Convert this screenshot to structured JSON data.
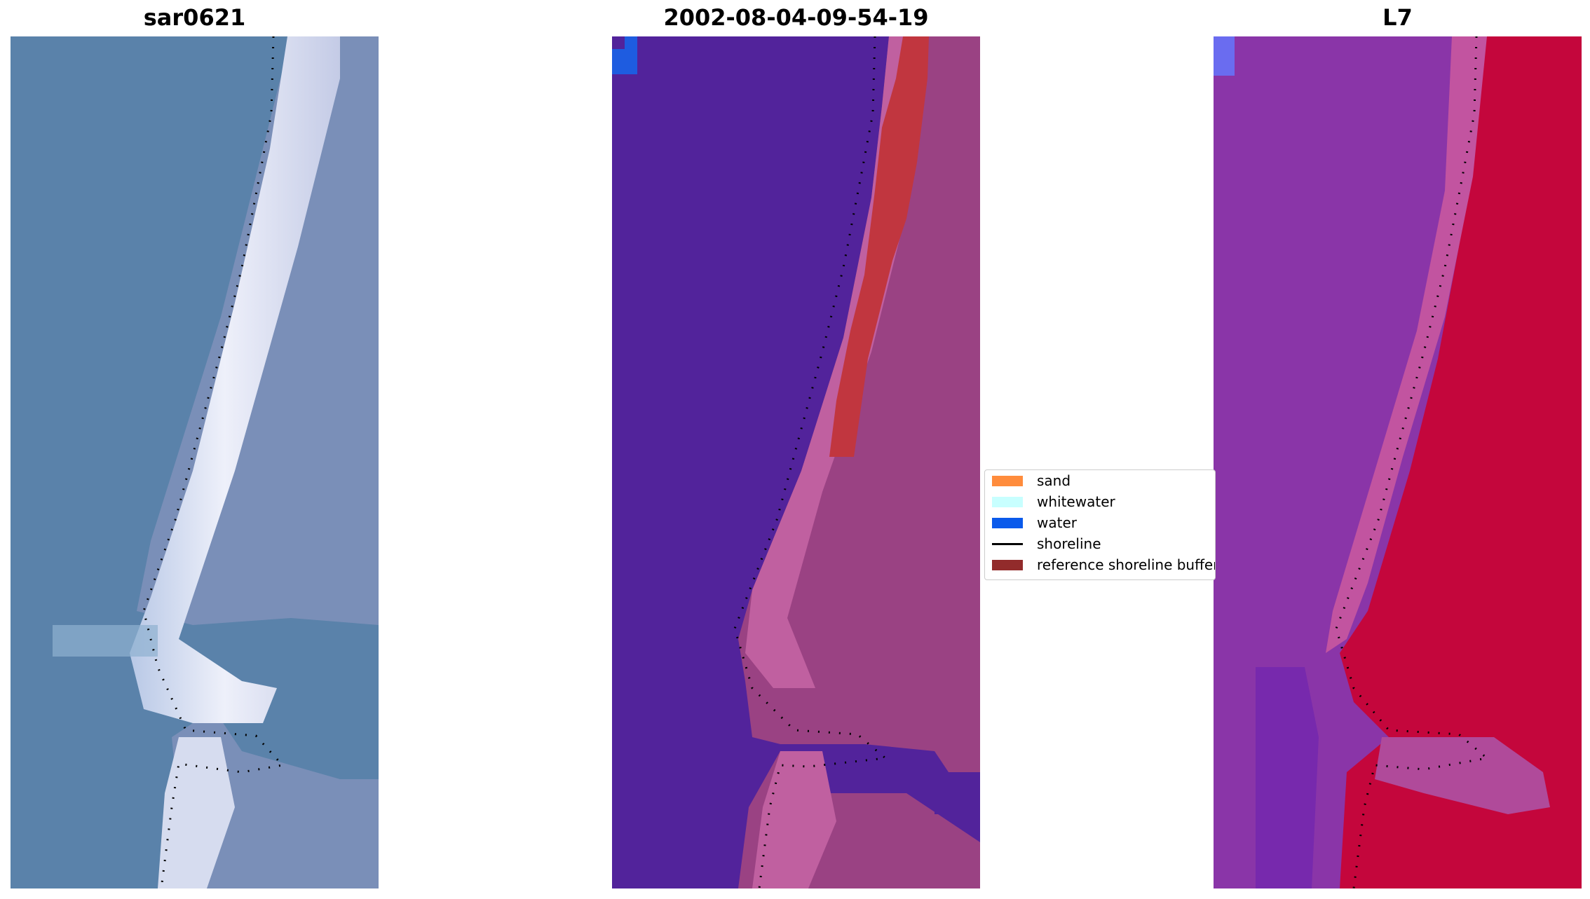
{
  "panels": [
    {
      "title": "sar0621"
    },
    {
      "title": "2002-08-04-09-54-19"
    },
    {
      "title": "L7"
    }
  ],
  "legend": {
    "items": [
      {
        "label": "sand",
        "color": "#ff8c3c",
        "type": "patch"
      },
      {
        "label": "whitewater",
        "color": "#c8ffff",
        "type": "patch"
      },
      {
        "label": "water",
        "color": "#0a5aeb",
        "type": "patch"
      },
      {
        "label": "shoreline",
        "color": "#000000",
        "type": "line"
      },
      {
        "label": "reference shoreline buffer",
        "color": "#922b2b",
        "type": "patch"
      }
    ]
  },
  "colors": {
    "sar_water": "#5a82aa",
    "sar_sand": "#e6e8f5",
    "sar_land": "#7a8fb8",
    "class_water": "#52239b",
    "class_land": "#9a4283",
    "class_land_light": "#c060a0",
    "class_buffer": "#c1363f",
    "class_blue": "#1e5ce0",
    "l7_water": "#8a35a8",
    "l7_land": "#c4063c",
    "l7_blue": "#6a6cf0"
  }
}
